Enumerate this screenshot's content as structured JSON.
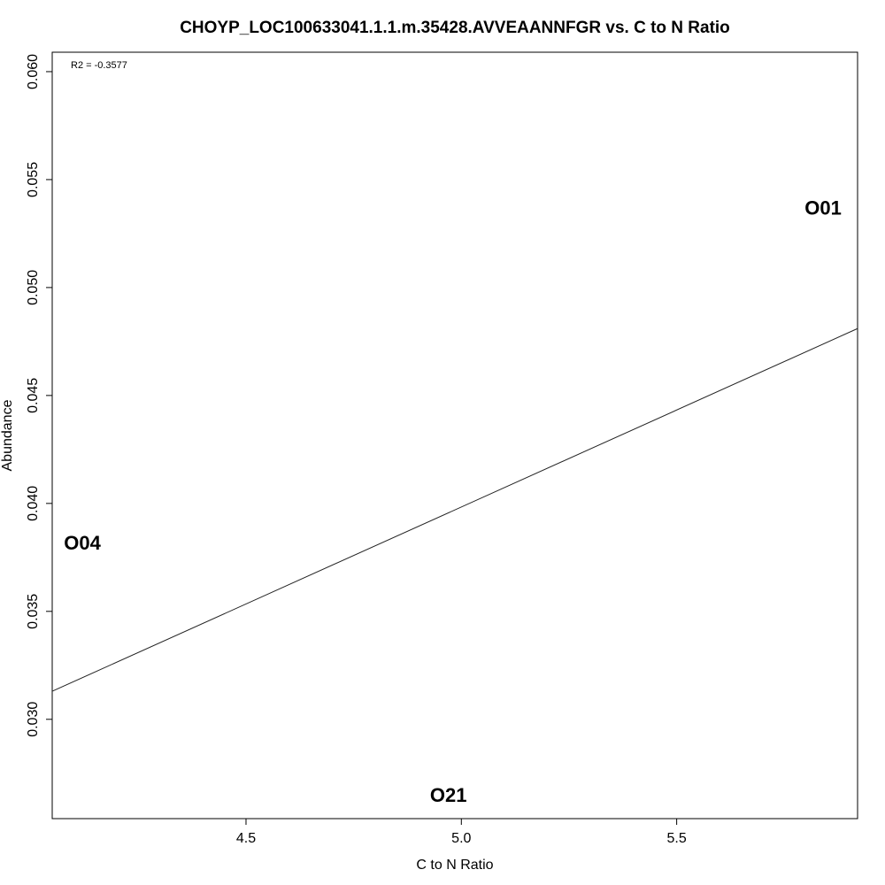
{
  "chart_data": {
    "type": "scatter",
    "title": "CHOYP_LOC100633041.1.1.m.35428.AVVEAANNFGR vs. C to N Ratio",
    "xlabel": "C to N Ratio",
    "ylabel": "Abundance",
    "xlim": [
      4.05,
      5.92
    ],
    "ylim": [
      0.0254,
      0.0609
    ],
    "x_ticks": [
      4.5,
      5.0,
      5.5
    ],
    "x_tick_labels": [
      "4.5",
      "5.0",
      "5.5"
    ],
    "y_ticks": [
      0.03,
      0.035,
      0.04,
      0.045,
      0.05,
      0.055,
      0.06
    ],
    "y_tick_labels": [
      "0.030",
      "0.035",
      "0.040",
      "0.045",
      "0.050",
      "0.055",
      "0.060"
    ],
    "points": [
      {
        "label": "O01",
        "x": 5.84,
        "y": 0.0537
      },
      {
        "label": "O04",
        "x": 4.12,
        "y": 0.0382
      },
      {
        "label": "O21",
        "x": 4.97,
        "y": 0.0265
      }
    ],
    "fit_line": {
      "x": [
        4.05,
        5.92
      ],
      "y": [
        0.0313,
        0.0481
      ]
    },
    "annotation": "R2 = -0.3577",
    "grid": false,
    "legend": "none"
  }
}
